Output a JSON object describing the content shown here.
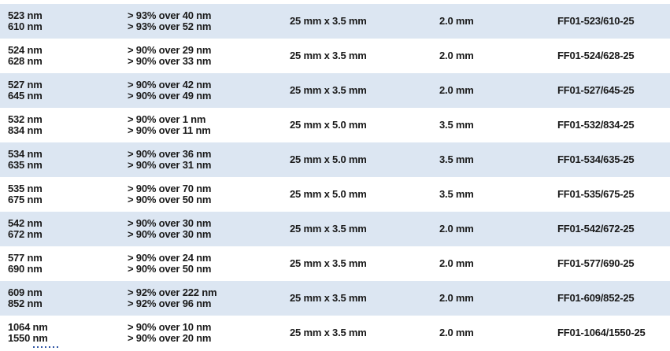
{
  "colors": {
    "shaded_row_bg": "#dce6f2",
    "text": "#1a1a1a",
    "cutoff_fragment_blue": "#2f55a4"
  },
  "rows": [
    {
      "wl1": "523 nm",
      "wl2": "610 nm",
      "tr1": "> 93% over 40 nm",
      "tr2": "> 93% over 52 nm",
      "size": "25 mm x 3.5 mm",
      "thickness": "2.0 mm",
      "part": "FF01-523/610-25"
    },
    {
      "wl1": "524 nm",
      "wl2": "628 nm",
      "tr1": "> 90% over 29 nm",
      "tr2": "> 90% over 33 nm",
      "size": "25 mm x 3.5 mm",
      "thickness": "2.0 mm",
      "part": "FF01-524/628-25"
    },
    {
      "wl1": "527 nm",
      "wl2": "645 nm",
      "tr1": "> 90% over 42 nm",
      "tr2": "> 90% over 49 nm",
      "size": "25 mm x 3.5 mm",
      "thickness": "2.0 mm",
      "part": "FF01-527/645-25"
    },
    {
      "wl1": "532 nm",
      "wl2": "834 nm",
      "tr1": "> 90% over 1 nm",
      "tr2": "> 90% over 11 nm",
      "size": "25 mm x 5.0 mm",
      "thickness": "3.5 mm",
      "part": "FF01-532/834-25"
    },
    {
      "wl1": "534 nm",
      "wl2": "635 nm",
      "tr1": "> 90% over 36 nm",
      "tr2": "> 90% over 31 nm",
      "size": "25 mm x 5.0 mm",
      "thickness": "3.5 mm",
      "part": "FF01-534/635-25"
    },
    {
      "wl1": "535 nm",
      "wl2": "675 nm",
      "tr1": "> 90% over 70 nm",
      "tr2": "> 90% over 50 nm",
      "size": "25 mm x 5.0 mm",
      "thickness": "3.5 mm",
      "part": "FF01-535/675-25"
    },
    {
      "wl1": "542 nm",
      "wl2": "672 nm",
      "tr1": "> 90% over 30 nm",
      "tr2": "> 90% over 30 nm",
      "size": "25 mm x 3.5 mm",
      "thickness": "2.0 mm",
      "part": "FF01-542/672-25"
    },
    {
      "wl1": "577 nm",
      "wl2": "690 nm",
      "tr1": "> 90% over 24 nm",
      "tr2": "> 90% over 50 nm",
      "size": "25 mm x 3.5 mm",
      "thickness": "2.0 mm",
      "part": "FF01-577/690-25"
    },
    {
      "wl1": "609 nm",
      "wl2": "852 nm",
      "tr1": "> 92% over 222 nm",
      "tr2": "> 92% over 96 nm",
      "size": "25 mm x 3.5 mm",
      "thickness": "2.0 mm",
      "part": "FF01-609/852-25"
    },
    {
      "wl1": "1064 nm",
      "wl2": "1550 nm",
      "tr1": "> 90% over 10 nm",
      "tr2": "> 90% over 20 nm",
      "size": "25 mm x 3.5 mm",
      "thickness": "2.0 mm",
      "part": "FF01-1064/1550-25"
    }
  ],
  "artifacts": {
    "bottom_left_cutoff": "partial text line clipped at bottom edge"
  }
}
